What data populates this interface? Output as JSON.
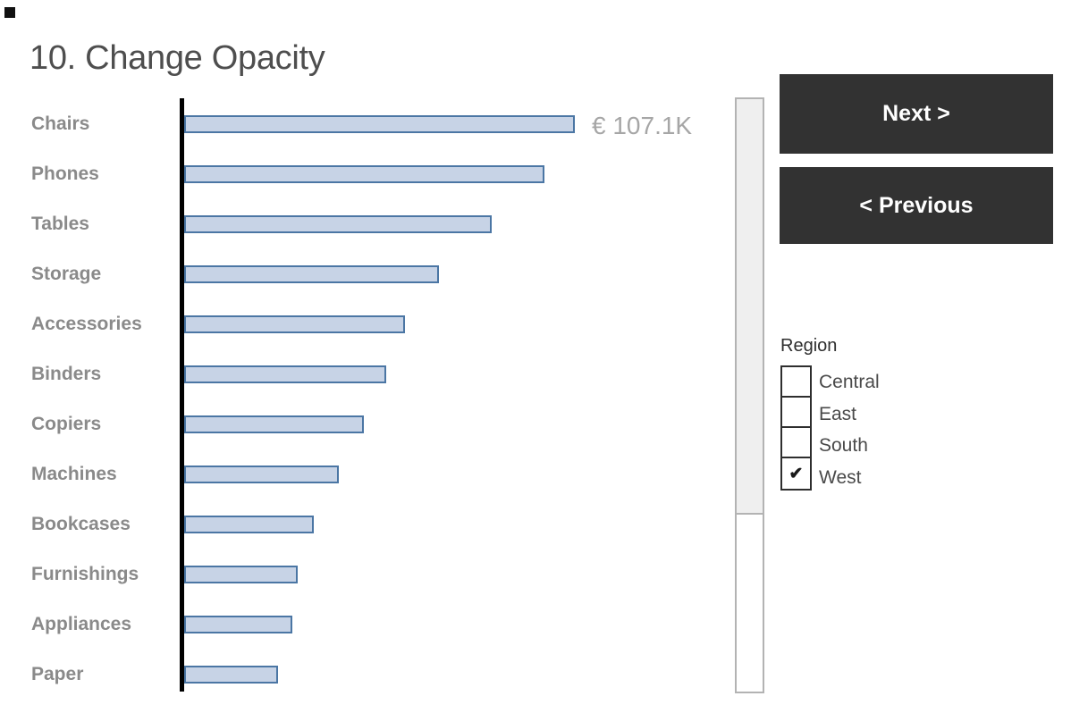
{
  "title": "10. Change Opacity",
  "chart_data": {
    "type": "bar",
    "orientation": "horizontal",
    "title": "",
    "xlabel": "",
    "ylabel": "",
    "unit": "EUR thousands",
    "xmax": 107.1,
    "categories": [
      "Chairs",
      "Phones",
      "Tables",
      "Storage",
      "Accessories",
      "Binders",
      "Copiers",
      "Machines",
      "Bookcases",
      "Furnishings",
      "Appliances",
      "Paper"
    ],
    "values": [
      107.1,
      98.8,
      84.3,
      69.9,
      60.5,
      55.4,
      49.3,
      42.4,
      35.5,
      31.1,
      29.7,
      25.7
    ],
    "value_label_first": "€ 107.1K",
    "legend": "none",
    "grid": "off",
    "bar_fill": "#c7d3e6",
    "bar_border": "#4b76a4",
    "axis_color": "#000000"
  },
  "buttons": {
    "next": "Next >",
    "previous": "< Previous",
    "bg_color": "#323232",
    "text_color": "#ffffff"
  },
  "region_filter": {
    "title": "Region",
    "options": [
      {
        "label": "Central",
        "checked": false,
        "check": ""
      },
      {
        "label": "East",
        "checked": false,
        "check": ""
      },
      {
        "label": "South",
        "checked": false,
        "check": ""
      },
      {
        "label": "West",
        "checked": true,
        "check": "✔"
      }
    ]
  },
  "colors": {
    "title_text": "#4e4e4e",
    "category_text": "#8a8a8a",
    "value_label_text": "#a6a6a6",
    "scrollbar_border": "#b3b3b3",
    "scrollbar_thumb": "#efefef"
  }
}
